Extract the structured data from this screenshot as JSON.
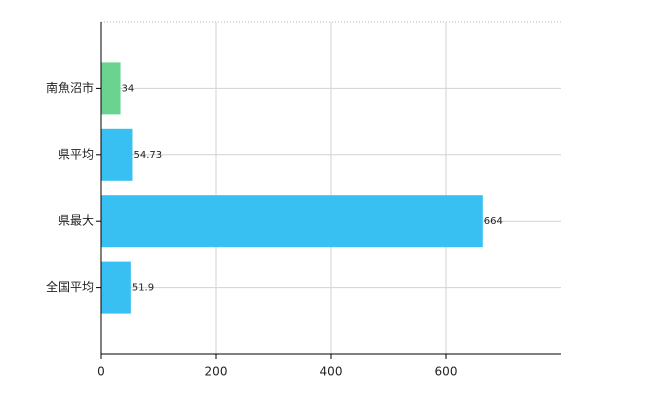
{
  "chart_data": {
    "type": "bar",
    "orientation": "horizontal",
    "categories": [
      "南魚沼市",
      "県平均",
      "県最大",
      "全国平均"
    ],
    "values": [
      34,
      54.73,
      664,
      51.9
    ],
    "colors": [
      "#6ad390",
      "#38c0f2",
      "#38c0f2",
      "#38c0f2"
    ],
    "xlim": [
      0,
      800
    ],
    "xticks": [
      0,
      200,
      400,
      600
    ],
    "grid": true
  }
}
